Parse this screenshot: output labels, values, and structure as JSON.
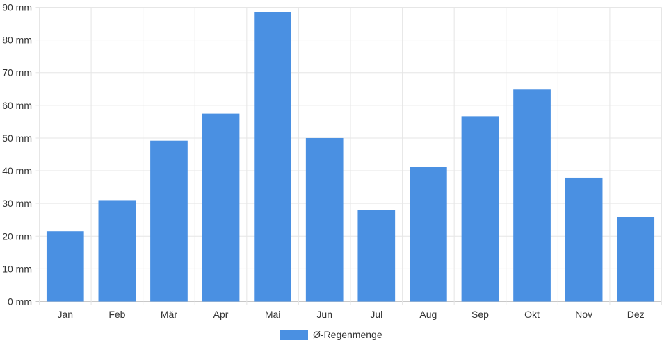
{
  "chart_data": {
    "type": "bar",
    "categories": [
      "Jan",
      "Feb",
      "Mär",
      "Apr",
      "Mai",
      "Jun",
      "Jul",
      "Aug",
      "Sep",
      "Okt",
      "Nov",
      "Dez"
    ],
    "series": [
      {
        "name": "Ø-Regenmenge",
        "values": [
          21.5,
          31,
          49.2,
          57.5,
          88.5,
          50,
          28.1,
          41.1,
          56.7,
          65,
          37.9,
          25.9
        ],
        "color": "#4a90e2"
      }
    ],
    "y_ticks": [
      "0 mm",
      "10 mm",
      "20 mm",
      "30 mm",
      "40 mm",
      "50 mm",
      "60 mm",
      "70 mm",
      "80 mm",
      "90 mm"
    ],
    "ylim": [
      0,
      90
    ],
    "grid": true,
    "legend_position": "bottom"
  }
}
